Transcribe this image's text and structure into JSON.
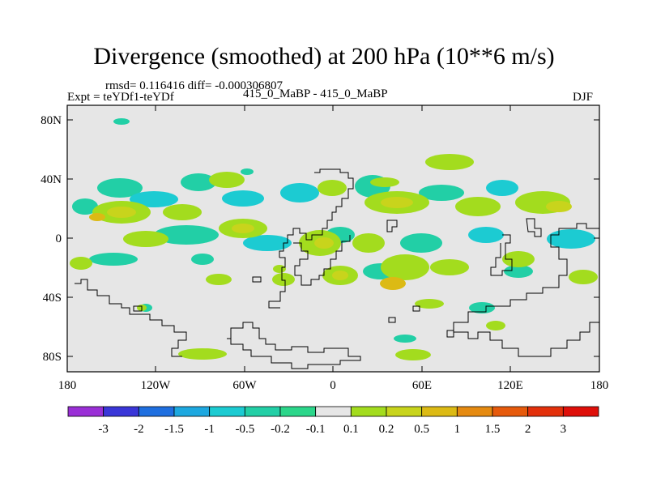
{
  "title": "Divergence (smoothed) at 200 hPa (10**6 m/s)",
  "stats": "rmsd= 0.116416 diff= -0.000306807",
  "experiment": "Expt = teYDf1-teYDf",
  "period": "415_0_MaBP - 415_0_MaBP",
  "season": "DJF",
  "lat_ticks": [
    "80N",
    "40N",
    "0",
    "40S",
    "80S"
  ],
  "lon_ticks": [
    "180",
    "120W",
    "60W",
    "0",
    "60E",
    "120E",
    "180"
  ],
  "colorbar": {
    "labels": [
      "-3",
      "-2",
      "-1.5",
      "-1",
      "-0.5",
      "-0.2",
      "-0.1",
      "0.1",
      "0.2",
      "0.5",
      "1",
      "1.5",
      "2",
      "3"
    ],
    "colors": [
      "#9a2fd6",
      "#3a36d8",
      "#1f6fe0",
      "#1da8e0",
      "#1ccbd2",
      "#22cfa6",
      "#2bd68a",
      "#e6e6e6",
      "#a3dc1e",
      "#c8d41c",
      "#dcba14",
      "#e58a10",
      "#e65a0c",
      "#e3300b",
      "#df0f0a"
    ]
  },
  "map_colors": {
    "background": "#e6e6e6",
    "neg_weak": "#22cfa6",
    "neg_mid": "#1ccbd2",
    "pos_weak": "#a3dc1e",
    "pos_mid": "#c8d41c",
    "pos_strong": "#dcba14",
    "coast": "#000000"
  }
}
